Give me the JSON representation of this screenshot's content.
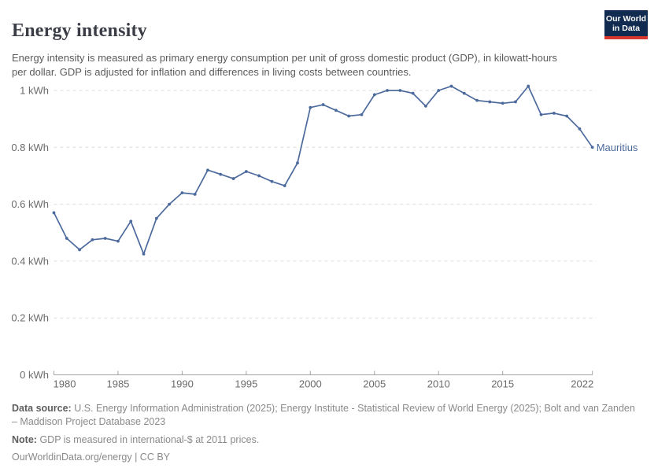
{
  "header": {
    "title": "Energy intensity",
    "subtitle": "Energy intensity is measured as primary energy consumption per unit of gross domestic product (GDP), in kilowatt-hours per dollar. GDP is adjusted for inflation and differences in living costs between countries.",
    "logo_line1": "Our World",
    "logo_line2": "in Data"
  },
  "chart_data": {
    "type": "line",
    "title": "Energy intensity",
    "entity": "Mauritius",
    "unit": "kWh",
    "x": [
      1980,
      1981,
      1982,
      1983,
      1984,
      1985,
      1986,
      1987,
      1988,
      1989,
      1990,
      1991,
      1992,
      1993,
      1994,
      1995,
      1996,
      1997,
      1998,
      1999,
      2000,
      2001,
      2002,
      2003,
      2004,
      2005,
      2006,
      2007,
      2008,
      2009,
      2010,
      2011,
      2012,
      2013,
      2014,
      2015,
      2016,
      2017,
      2018,
      2019,
      2020,
      2021,
      2022
    ],
    "values": [
      0.57,
      0.48,
      0.44,
      0.475,
      0.48,
      0.47,
      0.54,
      0.425,
      0.55,
      0.6,
      0.64,
      0.635,
      0.72,
      0.705,
      0.69,
      0.715,
      0.7,
      0.68,
      0.665,
      0.745,
      0.94,
      0.95,
      0.93,
      0.91,
      0.915,
      0.985,
      1.0,
      1.0,
      0.99,
      0.945,
      1.0,
      1.015,
      0.99,
      0.965,
      0.96,
      0.955,
      0.96,
      1.015,
      0.915,
      0.92,
      0.91,
      0.865,
      0.8
    ],
    "ylim": [
      0,
      1.0
    ],
    "yticks": [
      [
        0,
        "0 kWh"
      ],
      [
        0.2,
        "0.2 kWh"
      ],
      [
        0.4,
        "0.4 kWh"
      ],
      [
        0.6,
        "0.6 kWh"
      ],
      [
        0.8,
        "0.8 kWh"
      ],
      [
        1,
        "1 kWh"
      ]
    ],
    "xticks": [
      1980,
      1985,
      1990,
      1995,
      2000,
      2005,
      2010,
      2015,
      2022
    ],
    "grid": "horizontal-dashed",
    "legend_position": "end-of-line-label",
    "line_color": "#4c6a9c",
    "axis_color": "#a3a3a3",
    "grid_color": "#dcdcdc",
    "tick_label_color": "#6b6b6b"
  },
  "footer": {
    "data_source_label": "Data source:",
    "data_source_text": "U.S. Energy Information Administration (2025); Energy Institute - Statistical Review of World Energy (2025); Bolt and van Zanden – Maddison Project Database 2023",
    "note_label": "Note:",
    "note_text": "GDP is measured in international-$ at 2011 prices.",
    "license_text": "OurWorldinData.org/energy | CC BY"
  }
}
